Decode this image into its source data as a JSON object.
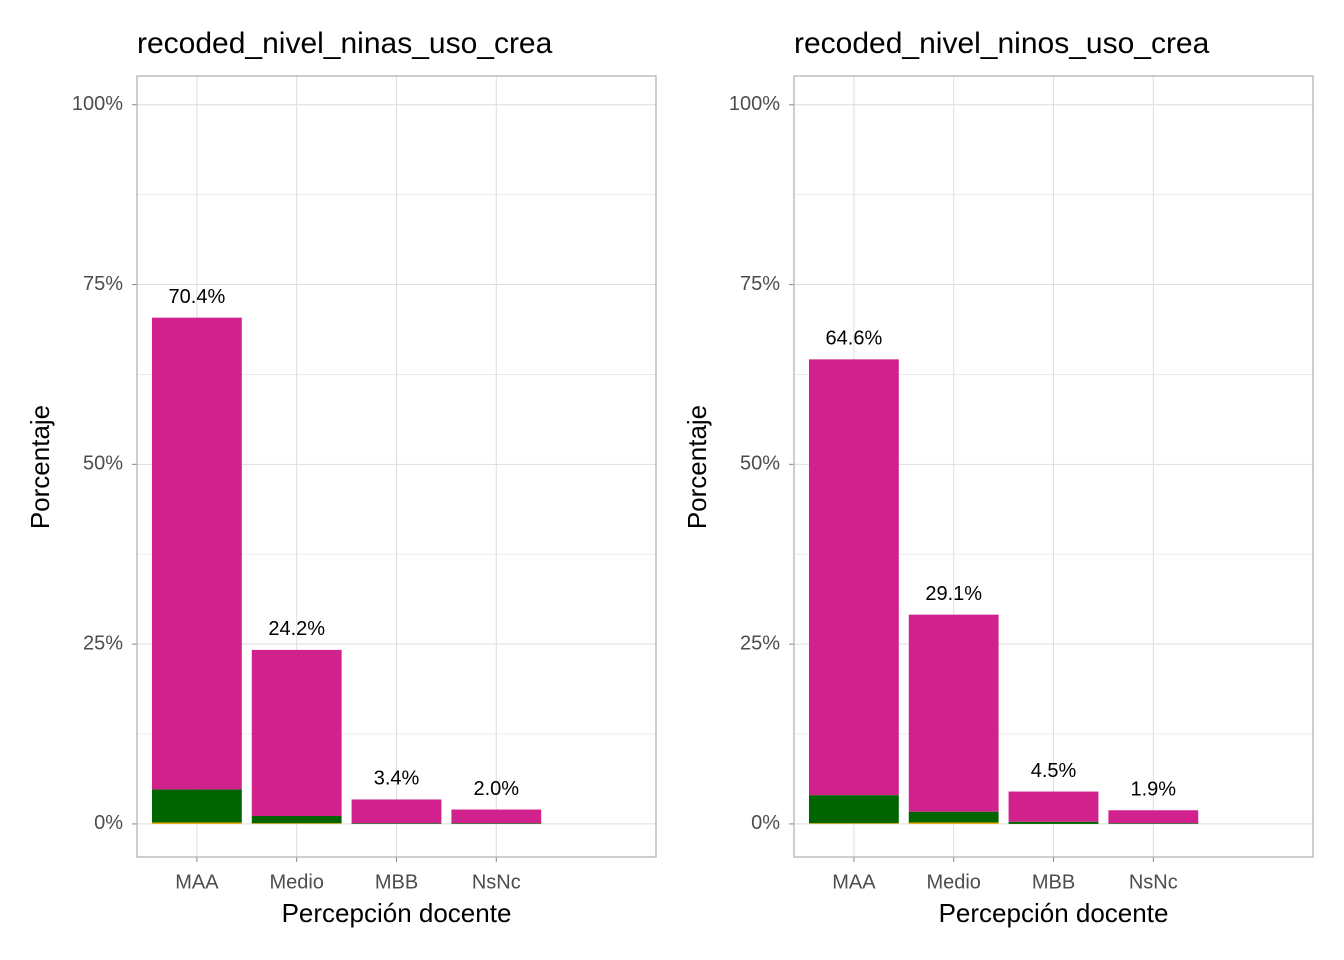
{
  "chart_data": [
    {
      "type": "stacked_bar",
      "title": "recoded_nivel_ninas_uso_crea",
      "x_label": "Percepción docente",
      "y_label": "Porcentaje",
      "categories": [
        "MAA",
        "Medio",
        "MBB",
        "NsNc"
      ],
      "series": [
        {
          "color": "#e6ab02",
          "values": [
            0.2,
            0.1,
            0,
            0
          ]
        },
        {
          "color": "#006400",
          "values": [
            4.6,
            1.0,
            0.1,
            0.1
          ]
        },
        {
          "color": "#d0218c",
          "values": [
            65.6,
            23.1,
            3.3,
            1.9
          ]
        }
      ],
      "totals": {
        "values": [
          70.4,
          24.2,
          3.4,
          2.0
        ],
        "value_labels": [
          "70.4%",
          "24.2%",
          "3.4%",
          "2.0%"
        ]
      },
      "ylim": [
        -4.6,
        104
      ],
      "yticks": [
        {
          "value": 0,
          "label": "0%"
        },
        {
          "value": 25,
          "label": "25%"
        },
        {
          "value": 50,
          "label": "50%"
        },
        {
          "value": 75,
          "label": "75%"
        },
        {
          "value": 100,
          "label": "100%"
        }
      ],
      "grid": true
    },
    {
      "type": "stacked_bar",
      "title": "recoded_nivel_ninos_uso_crea",
      "x_label": "Percepción docente",
      "y_label": "Porcentaje",
      "categories": [
        "MAA",
        "Medio",
        "MBB",
        "NsNc"
      ],
      "series": [
        {
          "color": "#e6ab02",
          "values": [
            0.1,
            0.2,
            0,
            0
          ]
        },
        {
          "color": "#006400",
          "values": [
            3.9,
            1.5,
            0.3,
            0.1
          ]
        },
        {
          "color": "#d0218c",
          "values": [
            60.6,
            27.4,
            4.2,
            1.8
          ]
        }
      ],
      "totals": {
        "values": [
          64.6,
          29.1,
          4.5,
          1.9
        ],
        "value_labels": [
          "64.6%",
          "29.1%",
          "4.5%",
          "1.9%"
        ]
      },
      "ylim": [
        -4.6,
        104
      ],
      "yticks": [
        {
          "value": 0,
          "label": "0%"
        },
        {
          "value": 25,
          "label": "25%"
        },
        {
          "value": 50,
          "label": "50%"
        },
        {
          "value": 75,
          "label": "75%"
        },
        {
          "value": 100,
          "label": "100%"
        }
      ],
      "grid": true
    }
  ]
}
